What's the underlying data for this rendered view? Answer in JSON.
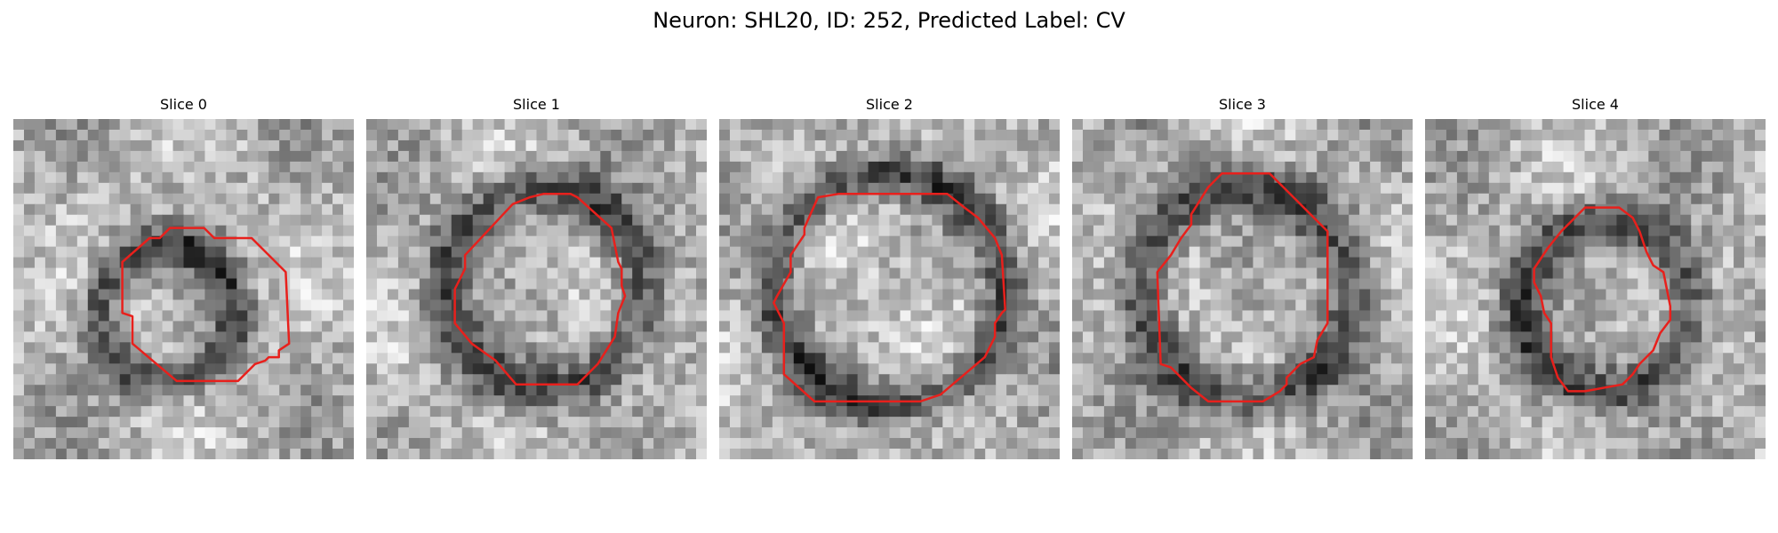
{
  "figure": {
    "title": "Neuron: SHL20, ID: 252, Predicted Label: CV",
    "panels": [
      {
        "title": "Slice 0"
      },
      {
        "title": "Slice 1"
      },
      {
        "title": "Slice 2"
      },
      {
        "title": "Slice 3"
      },
      {
        "title": "Slice 4"
      }
    ],
    "contour_color": "#e8201c",
    "image_style": "grayscale pixel grid with dark ring-shaped cell boundary"
  }
}
